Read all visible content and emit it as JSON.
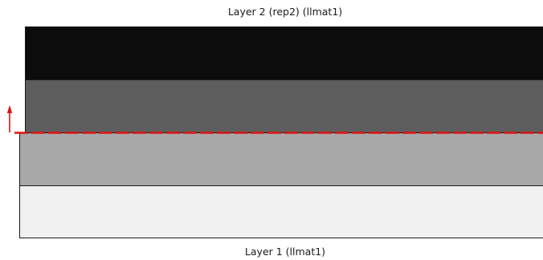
{
  "labels": {
    "top": "Layer 2 (rep2) (llmat1)",
    "bottom": "Layer 1 (llmat1)"
  },
  "layers": {
    "layer2_upper": {
      "color": "#0c0c0c"
    },
    "layer2_lower": {
      "color": "#5d5d5d"
    },
    "layer1_upper": {
      "color": "#a8a8a8"
    },
    "layer1_lower": {
      "color": "#f1f1f1"
    }
  },
  "interface": {
    "line_color": "#e01010",
    "arrow_color": "#e01010",
    "line_style": "dashed",
    "arrow_direction": "up"
  }
}
